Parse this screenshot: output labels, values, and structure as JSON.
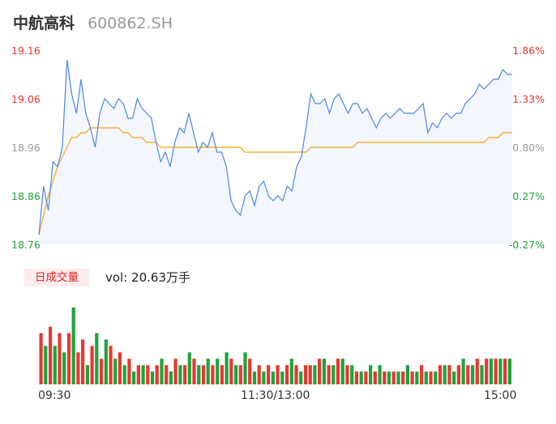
{
  "header": {
    "name": "中航高科",
    "code": "600862.SH"
  },
  "volume": {
    "tag": "日成交量",
    "label": "vol: 20.63万手"
  },
  "colors": {
    "up": "#e8372f",
    "down": "#1fa33a",
    "flat": "#9a9a9a",
    "price_line": "#4a86e8",
    "avg_line": "#f4b23a"
  },
  "chart_data": [
    {
      "type": "line",
      "y_ticks": [
        "19.16",
        "19.06",
        "18.96",
        "18.86",
        "18.76"
      ],
      "y_right_ticks": [
        "1.86%",
        "1.33%",
        "0.80%",
        "0.27%",
        "-0.27%"
      ],
      "x_ticks": [
        "09:30",
        "11:30/13:00",
        "15:00"
      ],
      "ylim": [
        18.76,
        19.16
      ],
      "prev_close": 18.81,
      "series": [
        {
          "role": "price",
          "values": [
            18.78,
            18.88,
            18.83,
            18.93,
            18.92,
            18.96,
            19.14,
            19.07,
            19.03,
            19.1,
            19.03,
            19.0,
            18.96,
            19.03,
            19.06,
            19.05,
            19.04,
            19.06,
            19.05,
            19.02,
            19.02,
            19.06,
            19.04,
            19.03,
            19.02,
            18.97,
            18.93,
            18.95,
            18.92,
            18.97,
            19.0,
            18.99,
            19.03,
            18.99,
            18.95,
            18.97,
            18.96,
            18.99,
            18.95,
            18.95,
            18.92,
            18.85,
            18.83,
            18.82,
            18.86,
            18.87,
            18.84,
            18.88,
            18.89,
            18.86,
            18.85,
            18.86,
            18.85,
            18.88,
            18.87,
            18.92,
            18.94,
            19.0,
            19.07,
            19.05,
            19.05,
            19.06,
            19.03,
            19.06,
            19.07,
            19.05,
            19.03,
            19.05,
            19.05,
            19.03,
            19.04,
            19.02,
            19.0,
            19.02,
            19.03,
            19.02,
            19.03,
            19.04,
            19.03,
            19.03,
            19.03,
            19.04,
            19.05,
            18.99,
            19.01,
            19.0,
            19.02,
            19.03,
            19.02,
            19.03,
            19.03,
            19.05,
            19.06,
            19.07,
            19.09,
            19.08,
            19.09,
            19.1,
            19.1,
            19.12,
            19.11,
            19.11
          ]
        },
        {
          "role": "average",
          "values": [
            18.78,
            18.82,
            18.86,
            18.89,
            18.92,
            18.94,
            18.96,
            18.98,
            18.98,
            18.99,
            18.99,
            19.0,
            19.0,
            19.0,
            19.0,
            19.0,
            19.0,
            19.0,
            18.99,
            18.99,
            18.98,
            18.98,
            18.98,
            18.97,
            18.97,
            18.97,
            18.96,
            18.96,
            18.96,
            18.96,
            18.96,
            18.96,
            18.96,
            18.96,
            18.96,
            18.96,
            18.96,
            18.96,
            18.96,
            18.96,
            18.96,
            18.96,
            18.96,
            18.96,
            18.95,
            18.95,
            18.95,
            18.95,
            18.95,
            18.95,
            18.95,
            18.95,
            18.95,
            18.95,
            18.95,
            18.95,
            18.95,
            18.95,
            18.96,
            18.96,
            18.96,
            18.96,
            18.96,
            18.96,
            18.96,
            18.96,
            18.96,
            18.96,
            18.97,
            18.97,
            18.97,
            18.97,
            18.97,
            18.97,
            18.97,
            18.97,
            18.97,
            18.97,
            18.97,
            18.97,
            18.97,
            18.97,
            18.97,
            18.97,
            18.97,
            18.97,
            18.97,
            18.97,
            18.97,
            18.97,
            18.97,
            18.97,
            18.97,
            18.97,
            18.97,
            18.97,
            18.98,
            18.98,
            18.98,
            18.99,
            18.99,
            18.99
          ]
        }
      ]
    },
    {
      "type": "bar",
      "series": [
        {
          "role": "volume",
          "values": [
            8,
            6,
            9,
            6,
            8,
            5,
            8,
            12,
            5,
            7,
            3,
            6,
            8,
            4,
            7,
            6,
            4,
            5,
            3,
            4,
            2,
            3,
            3,
            3,
            2,
            3,
            4,
            3,
            2,
            4,
            3,
            3,
            5,
            4,
            3,
            3,
            4,
            3,
            4,
            3,
            5,
            4,
            3,
            3,
            5,
            4,
            2,
            3,
            2,
            3,
            2,
            3,
            2,
            3,
            4,
            3,
            2,
            3,
            3,
            3,
            4,
            4,
            3,
            3,
            4,
            4,
            3,
            3,
            2,
            2,
            2,
            3,
            2,
            3,
            2,
            2,
            2,
            2,
            2,
            3,
            2,
            2,
            3,
            2,
            2,
            2,
            3,
            3,
            3,
            2,
            3,
            4,
            3,
            3,
            4,
            3,
            4,
            4,
            4,
            4,
            4,
            4
          ]
        },
        {
          "role": "direction",
          "values": [
            "u",
            "d",
            "u",
            "d",
            "u",
            "d",
            "u",
            "d",
            "u",
            "u",
            "d",
            "u",
            "d",
            "u",
            "d",
            "u",
            "d",
            "u",
            "d",
            "u",
            "d",
            "u",
            "d",
            "u",
            "d",
            "u",
            "d",
            "u",
            "d",
            "u",
            "d",
            "u",
            "d",
            "u",
            "d",
            "u",
            "d",
            "u",
            "d",
            "u",
            "d",
            "u",
            "d",
            "u",
            "d",
            "u",
            "d",
            "u",
            "d",
            "u",
            "d",
            "u",
            "d",
            "u",
            "d",
            "u",
            "d",
            "u",
            "u",
            "d",
            "u",
            "d",
            "u",
            "d",
            "u",
            "d",
            "u",
            "d",
            "u",
            "d",
            "u",
            "d",
            "u",
            "d",
            "u",
            "d",
            "u",
            "d",
            "u",
            "d",
            "u",
            "d",
            "u",
            "d",
            "u",
            "d",
            "u",
            "d",
            "u",
            "d",
            "u",
            "d",
            "u",
            "d",
            "u",
            "d",
            "u",
            "d",
            "u",
            "d",
            "u",
            "d"
          ]
        }
      ]
    }
  ]
}
